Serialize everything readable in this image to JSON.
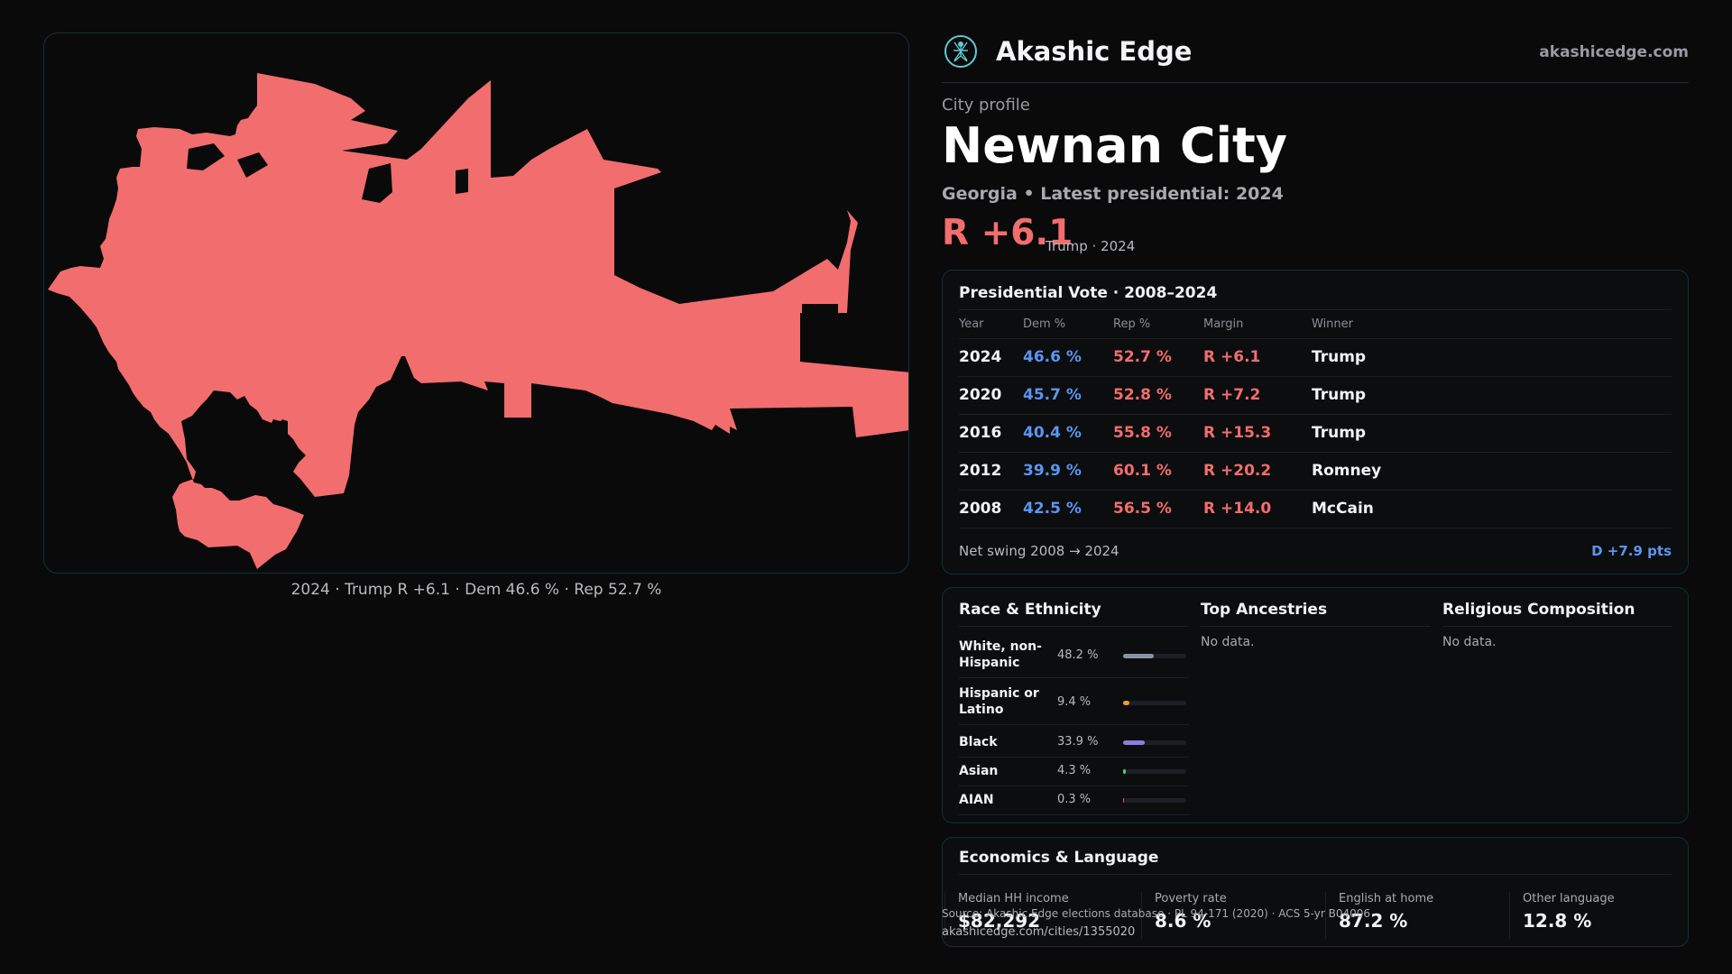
{
  "brand": {
    "name": "Akashic Edge",
    "url": "akashicedge.com",
    "logo_icon": "compass-figure-icon",
    "accent": "#5fc9d3"
  },
  "profile": {
    "eyebrow": "City profile",
    "city": "Newnan City",
    "subtitle": "Georgia • Latest presidential: 2024",
    "margin": "R +6.1",
    "margin_sub": "Trump · 2024"
  },
  "map": {
    "caption": "2024 · Trump  R +6.1 · Dem 46.6 % · Rep 52.7 %",
    "fill_color": "#f26d6d"
  },
  "vote": {
    "title": "Presidential Vote · 2008–2024",
    "headers": {
      "year": "Year",
      "dem": "Dem %",
      "rep": "Rep %",
      "margin": "Margin",
      "winner": "Winner"
    },
    "rows": [
      {
        "year": "2024",
        "dem": "46.6 %",
        "rep": "52.7 %",
        "margin": "R +6.1",
        "winner": "Trump"
      },
      {
        "year": "2020",
        "dem": "45.7 %",
        "rep": "52.8 %",
        "margin": "R +7.2",
        "winner": "Trump"
      },
      {
        "year": "2016",
        "dem": "40.4 %",
        "rep": "55.8 %",
        "margin": "R +15.3",
        "winner": "Trump"
      },
      {
        "year": "2012",
        "dem": "39.9 %",
        "rep": "60.1 %",
        "margin": "R +20.2",
        "winner": "Romney"
      },
      {
        "year": "2008",
        "dem": "42.5 %",
        "rep": "56.5 %",
        "margin": "R +14.0",
        "winner": "McCain"
      }
    ],
    "swing_label": "Net swing 2008 → 2024",
    "swing_value": "D +7.9 pts",
    "colors": {
      "dem": "#5b95f0",
      "rep": "#f26d6d"
    }
  },
  "demographics": {
    "race": {
      "title": "Race & Ethnicity",
      "rows": [
        {
          "label": "White, non-Hispanic",
          "pct": "48.2 %",
          "share": 0.482,
          "color": "#8a93a6"
        },
        {
          "label": "Hispanic or Latino",
          "pct": "9.4 %",
          "share": 0.094,
          "color": "#e0a030"
        },
        {
          "label": "Black",
          "pct": "33.9 %",
          "share": 0.339,
          "color": "#8f7be0"
        },
        {
          "label": "Asian",
          "pct": "4.3 %",
          "share": 0.043,
          "color": "#3ecf8e"
        },
        {
          "label": "AIAN",
          "pct": "0.3 %",
          "share": 0.003,
          "color": "#d06060"
        }
      ]
    },
    "ancestries": {
      "title": "Top Ancestries",
      "empty": "No data."
    },
    "religion": {
      "title": "Religious Composition",
      "empty": "No data."
    }
  },
  "economics": {
    "title": "Economics & Language",
    "stats": [
      {
        "label": "Median HH income",
        "value": "$82,292"
      },
      {
        "label": "Poverty rate",
        "value": "8.6 %"
      },
      {
        "label": "English at home",
        "value": "87.2 %"
      },
      {
        "label": "Other language",
        "value": "12.8 %"
      }
    ]
  },
  "footer": {
    "source": "Source: Akashic Edge elections database · PL 94-171 (2020) · ACS 5-yr B04006",
    "url": "akashicedge.com/cities/1355020"
  }
}
